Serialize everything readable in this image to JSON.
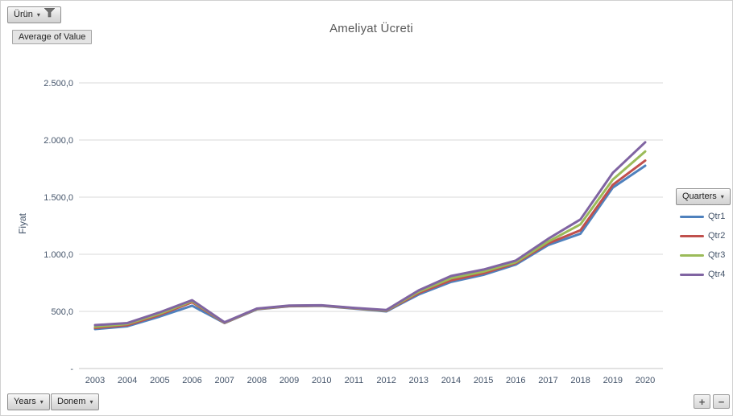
{
  "buttons": {
    "product_filter": "Ürün",
    "value_field": "Average of Value",
    "legend_field": "Quarters",
    "axis_field_years": "Years",
    "axis_field_donem": "Donem",
    "expand": "+",
    "collapse": "−"
  },
  "chart_data": {
    "type": "line",
    "title": "Ameliyat Ücreti",
    "ylabel": "Fiyat",
    "xlabel": "",
    "ylim": [
      0,
      2500
    ],
    "yticks": [
      0,
      500,
      1000,
      1500,
      2000,
      2500
    ],
    "ytick_labels": [
      "-",
      "500,0",
      "1.000,0",
      "1.500,0",
      "2.000,0",
      "2.500,0"
    ],
    "grid": "horizontal",
    "legend_position": "right",
    "categories": [
      "2003",
      "2004",
      "2005",
      "2006",
      "2007",
      "2008",
      "2009",
      "2010",
      "2011",
      "2012",
      "2013",
      "2014",
      "2015",
      "2016",
      "2017",
      "2018",
      "2019",
      "2020"
    ],
    "series": [
      {
        "name": "Qtr1",
        "color": "#4F81BD",
        "values": [
          345,
          370,
          455,
          550,
          398,
          518,
          545,
          548,
          525,
          500,
          648,
          758,
          820,
          910,
          1080,
          1180,
          1584,
          1775
        ]
      },
      {
        "name": "Qtr2",
        "color": "#C0504D",
        "values": [
          355,
          380,
          470,
          580,
          400,
          520,
          547,
          550,
          527,
          505,
          660,
          772,
          833,
          922,
          1095,
          1210,
          1608,
          1820
        ]
      },
      {
        "name": "Qtr3",
        "color": "#9BBB59",
        "values": [
          365,
          390,
          480,
          590,
          402,
          522,
          549,
          552,
          529,
          508,
          672,
          790,
          848,
          930,
          1110,
          1262,
          1654,
          1900
        ]
      },
      {
        "name": "Qtr4",
        "color": "#8064A2",
        "values": [
          380,
          398,
          492,
          598,
          405,
          525,
          551,
          554,
          531,
          512,
          684,
          810,
          866,
          945,
          1135,
          1305,
          1713,
          1980
        ]
      }
    ],
    "colors": {
      "gridline": "#d9d9d9",
      "axis_line": "#c6c6c6",
      "tick_text": "#44546a",
      "title_text": "#595959"
    }
  }
}
